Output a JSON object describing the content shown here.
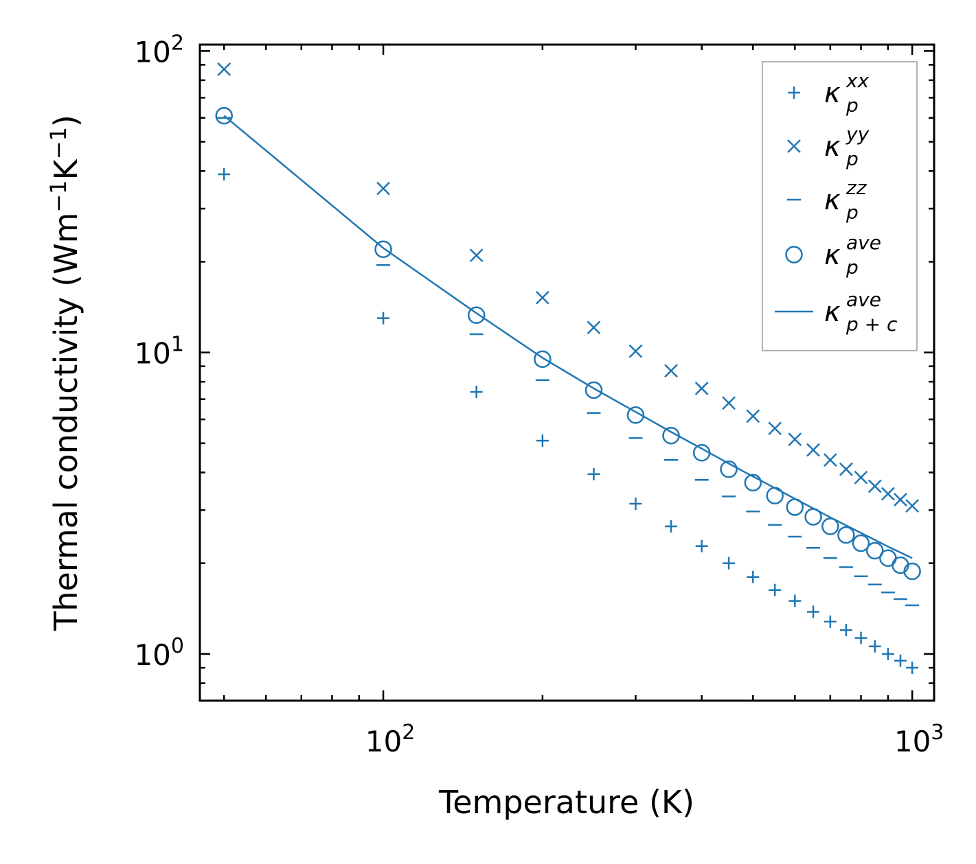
{
  "chart_data": {
    "type": "scatter",
    "xscale": "log",
    "yscale": "log",
    "xlim": [
      45,
      1100
    ],
    "ylim": [
      0.7,
      105
    ],
    "xlabel": "Temperature (K)",
    "ylabel": {
      "prefix": "Thermal conductivity (Wm",
      "sup1": "−1",
      "mid": "K",
      "sup2": "−1",
      "suffix": ")"
    },
    "x_ticks": [
      {
        "value": 100,
        "base": "10",
        "exp": "2"
      },
      {
        "value": 1000,
        "base": "10",
        "exp": "3"
      }
    ],
    "y_ticks": [
      {
        "value": 1,
        "base": "10",
        "exp": "0"
      },
      {
        "value": 10,
        "base": "10",
        "exp": "1"
      },
      {
        "value": 100,
        "base": "10",
        "exp": "2"
      }
    ],
    "color": "#1f77b4",
    "x": [
      50,
      100,
      150,
      200,
      250,
      300,
      350,
      400,
      450,
      500,
      550,
      600,
      650,
      700,
      750,
      800,
      850,
      900,
      950,
      1000
    ],
    "series": [
      {
        "name": "kappa_p_xx",
        "label_base": "κ",
        "label_sub": "p",
        "label_sup": "xx",
        "marker": "plus",
        "values": [
          39,
          13.0,
          7.4,
          5.1,
          3.95,
          3.15,
          2.65,
          2.28,
          2.0,
          1.8,
          1.63,
          1.5,
          1.38,
          1.28,
          1.2,
          1.13,
          1.06,
          1.0,
          0.95,
          0.9
        ]
      },
      {
        "name": "kappa_p_yy",
        "label_base": "κ",
        "label_sub": "p",
        "label_sup": "yy",
        "marker": "x",
        "values": [
          87,
          35,
          21,
          15.2,
          12.1,
          10.1,
          8.7,
          7.6,
          6.8,
          6.15,
          5.6,
          5.15,
          4.75,
          4.4,
          4.1,
          3.85,
          3.6,
          3.4,
          3.25,
          3.1
        ]
      },
      {
        "name": "kappa_p_zz",
        "label_base": "κ",
        "label_sub": "p",
        "label_sup": "zz",
        "marker": "hline",
        "values": [
          60,
          19.5,
          11.5,
          8.1,
          6.3,
          5.2,
          4.4,
          3.78,
          3.33,
          2.97,
          2.68,
          2.45,
          2.25,
          2.08,
          1.94,
          1.81,
          1.7,
          1.6,
          1.52,
          1.45
        ]
      },
      {
        "name": "kappa_p_ave",
        "label_base": "κ",
        "label_sub": "p",
        "label_sup": "ave",
        "marker": "circle",
        "values": [
          61,
          22,
          13.3,
          9.5,
          7.5,
          6.2,
          5.3,
          4.65,
          4.1,
          3.7,
          3.35,
          3.07,
          2.85,
          2.65,
          2.48,
          2.33,
          2.2,
          2.08,
          1.97,
          1.88
        ]
      },
      {
        "name": "kappa_pc_ave",
        "label_base": "κ",
        "label_sub": "p + c",
        "label_sup": "ave",
        "marker": "line",
        "values": [
          61,
          22.2,
          13.5,
          9.6,
          7.6,
          6.35,
          5.45,
          4.8,
          4.28,
          3.88,
          3.55,
          3.27,
          3.04,
          2.84,
          2.67,
          2.52,
          2.39,
          2.27,
          2.17,
          2.08
        ]
      }
    ]
  }
}
